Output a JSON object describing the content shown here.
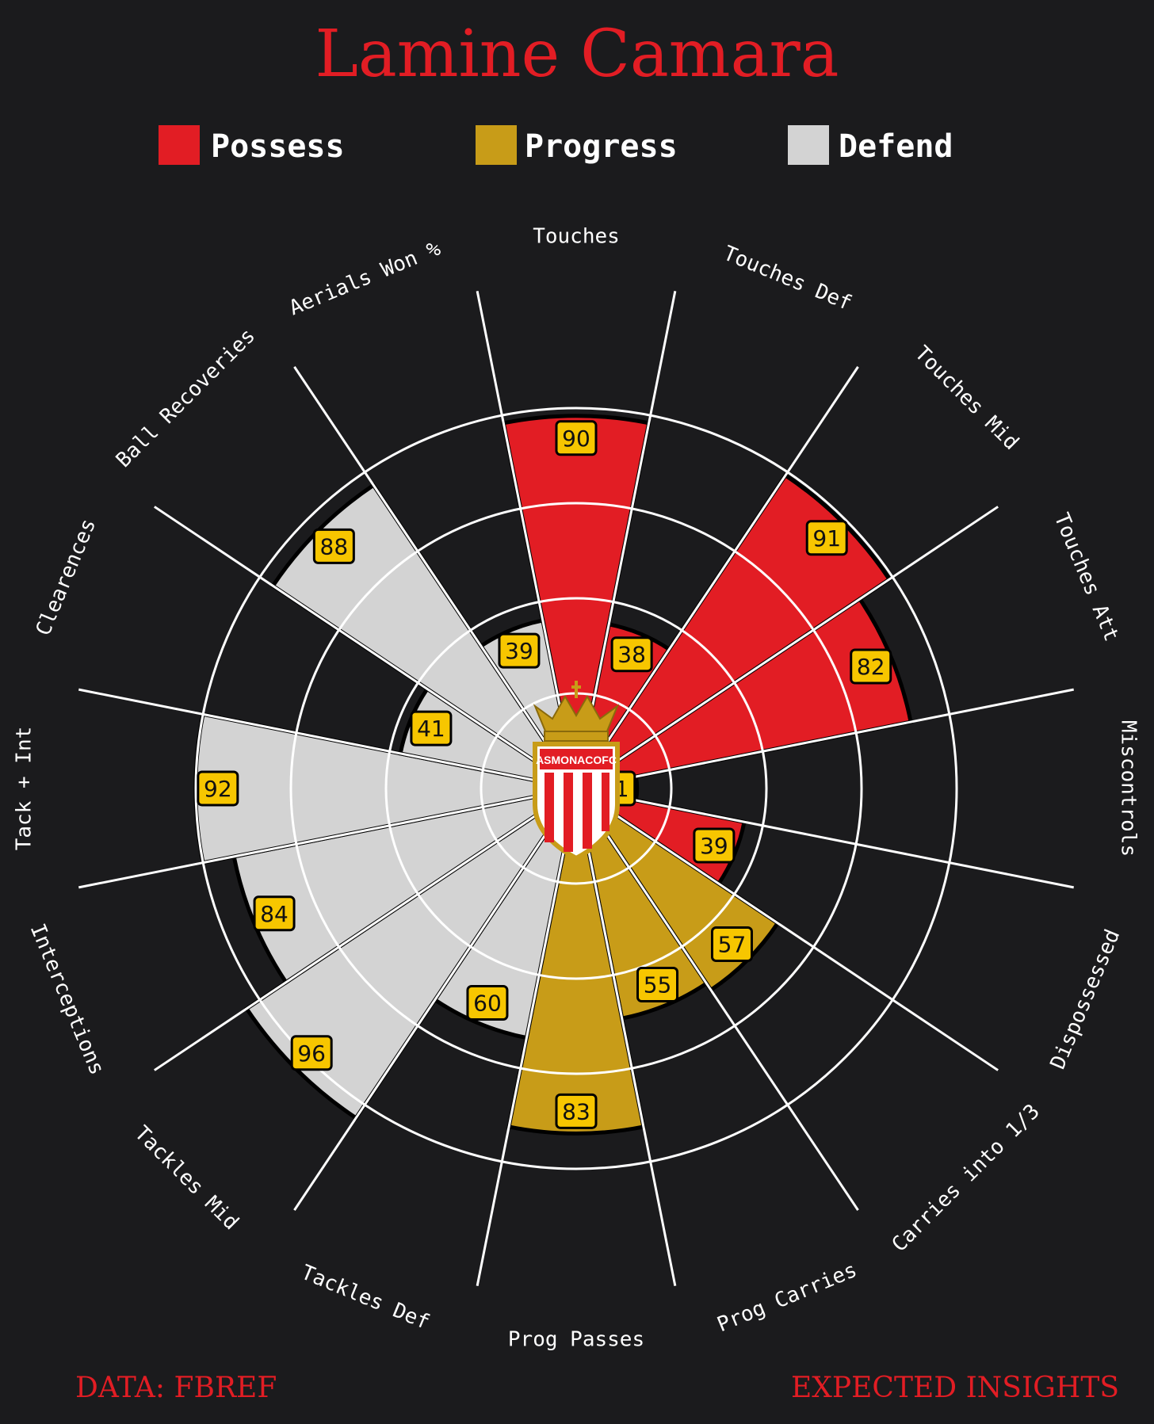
{
  "title": "Lamine Camara",
  "legend": [
    {
      "label": "Possess",
      "color": "#e21d24"
    },
    {
      "label": "Progress",
      "color": "#c89c18"
    },
    {
      "label": "Defend",
      "color": "#d3d3d3"
    }
  ],
  "crest_text": "ASMONACOFC",
  "footer": {
    "left": "DATA: FBREF",
    "right": "EXPECTED INSIGHTS"
  },
  "colors": {
    "background": "#1b1b1d",
    "grid": "#ffffff",
    "value_box": "#f7c600",
    "crest_gold": "#c89c18",
    "crest_red": "#e21d24"
  },
  "chart_data": {
    "type": "pizza",
    "range": [
      0,
      100
    ],
    "params": [
      {
        "label": "Touches",
        "value": 90,
        "group": "Possess"
      },
      {
        "label": "Touches Def",
        "value": 38,
        "group": "Possess"
      },
      {
        "label": "Touches Mid",
        "value": 91,
        "group": "Possess"
      },
      {
        "label": "Touches Att",
        "value": 82,
        "group": "Possess"
      },
      {
        "label": "Miscontrols",
        "value": 11,
        "group": "Possess"
      },
      {
        "label": "Dispossessed",
        "value": 39,
        "group": "Possess"
      },
      {
        "label": "Carries into 1/3",
        "value": 57,
        "group": "Progress"
      },
      {
        "label": "Prog Carries",
        "value": 55,
        "group": "Progress"
      },
      {
        "label": "Prog Passes",
        "value": 83,
        "group": "Progress"
      },
      {
        "label": "Tackles Def",
        "value": 60,
        "group": "Defend"
      },
      {
        "label": "Tackles Mid",
        "value": 96,
        "group": "Defend"
      },
      {
        "label": "Interceptions",
        "value": 84,
        "group": "Defend"
      },
      {
        "label": "Tack + Int",
        "value": 92,
        "group": "Defend"
      },
      {
        "label": "Clearences",
        "value": 41,
        "group": "Defend"
      },
      {
        "label": "Ball Recoveries",
        "value": 88,
        "group": "Defend"
      },
      {
        "label": "Aerials Won %",
        "value": 39,
        "group": "Defend"
      }
    ]
  }
}
